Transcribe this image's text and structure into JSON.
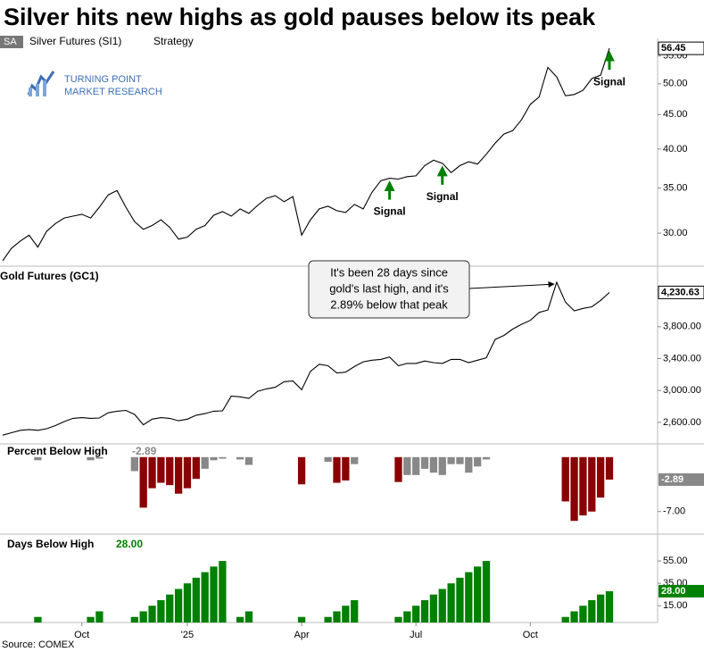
{
  "title": "Silver hits new highs as gold pauses below its peak",
  "source": "Source: COMEX",
  "logo": {
    "line1": "TURNING POINT",
    "line2": "MARKET RESEARCH"
  },
  "chart_data": [
    {
      "type": "line",
      "symbol": "SA",
      "name": "Silver Futures (SI1)",
      "study": "Strategy",
      "color": "#000000",
      "log_scale": true,
      "ylim": [
        26.8,
        58.4
      ],
      "yticks": [
        {
          "value": 30,
          "label": "30.00"
        },
        {
          "value": 35,
          "label": "35.00"
        },
        {
          "value": 40,
          "label": "40.00"
        },
        {
          "value": 45,
          "label": "45.00"
        },
        {
          "value": 50,
          "label": "50.00"
        },
        {
          "value": 55,
          "label": "55.00"
        }
      ],
      "values": [
        27.3,
        28.5,
        29.2,
        29.8,
        28.6,
        30.2,
        31.0,
        31.6,
        31.8,
        32.0,
        31.6,
        32.8,
        34.2,
        34.7,
        32.8,
        31.2,
        30.4,
        30.8,
        31.4,
        30.6,
        29.4,
        29.6,
        30.4,
        30.8,
        31.9,
        32.3,
        31.8,
        32.6,
        32.1,
        33.0,
        33.8,
        34.1,
        33.4,
        34.0,
        29.8,
        31.4,
        32.6,
        32.9,
        32.4,
        32.2,
        33.1,
        32.6,
        34.5,
        35.9,
        36.2,
        36.1,
        36.4,
        36.5,
        37.8,
        38.5,
        38.1,
        36.9,
        37.8,
        38.3,
        38.0,
        39.3,
        40.8,
        42.1,
        42.6,
        44.2,
        46.6,
        47.8,
        52.9,
        51.2,
        48.0,
        48.2,
        48.9,
        50.9,
        51.5,
        56.45
      ],
      "last_label": "56.45",
      "signal_color": "#008000",
      "signals": [
        {
          "index": 44,
          "label": "Signal"
        },
        {
          "index": 50,
          "label": "Signal"
        },
        {
          "index": 69,
          "label": "Signal"
        }
      ]
    },
    {
      "type": "line",
      "name": "Gold Futures (GC1)",
      "color": "#000000",
      "ylim": [
        2330,
        4560
      ],
      "yticks": [
        {
          "value": 2600,
          "label": "2,600.00"
        },
        {
          "value": 3000,
          "label": "3,000.00"
        },
        {
          "value": 3400,
          "label": "3,400.00"
        },
        {
          "value": 3800,
          "label": "3,800.00"
        }
      ],
      "values": [
        2440,
        2470,
        2500,
        2510,
        2500,
        2520,
        2560,
        2610,
        2650,
        2660,
        2650,
        2655,
        2720,
        2740,
        2750,
        2700,
        2570,
        2640,
        2660,
        2650,
        2620,
        2640,
        2690,
        2710,
        2740,
        2745,
        2930,
        2920,
        2900,
        2990,
        3020,
        3040,
        3110,
        3120,
        3010,
        3240,
        3330,
        3310,
        3220,
        3230,
        3300,
        3360,
        3380,
        3390,
        3420,
        3310,
        3340,
        3340,
        3370,
        3350,
        3340,
        3390,
        3390,
        3350,
        3380,
        3410,
        3640,
        3690,
        3770,
        3830,
        3880,
        3980,
        4010,
        4357,
        4110,
        4000,
        4030,
        4050,
        4130,
        4230.63
      ],
      "last_label": "4,230.63",
      "annotation": {
        "index": 63,
        "lines": [
          "It's been 28 days since",
          "gold's last high, and it's",
          "2.89% below that peak"
        ]
      }
    },
    {
      "type": "bar",
      "name": "Percent Below High",
      "badge_color": "#888888",
      "ylim": [
        -9.9,
        1.7
      ],
      "yticks": [
        {
          "value": -7,
          "label": "-7.00"
        }
      ],
      "values": [
        0,
        0,
        0,
        0,
        -0.4,
        0,
        0,
        0,
        0,
        0,
        -0.4,
        -0.2,
        0,
        0,
        0,
        -1.8,
        -6.5,
        -4.0,
        -3.3,
        -3.6,
        -4.7,
        -4.0,
        -2.8,
        -1.5,
        -0.4,
        -0.2,
        0,
        -0.3,
        -1.0,
        0,
        0,
        0,
        0,
        0,
        -3.5,
        0,
        0,
        -0.6,
        -3.3,
        -3.0,
        -0.9,
        0,
        0,
        0,
        0,
        -3.2,
        -2.3,
        -2.3,
        -1.5,
        -2.0,
        -2.3,
        -0.9,
        -0.9,
        -2.0,
        -1.2,
        -0.3,
        0,
        0,
        0,
        0,
        0,
        0,
        0,
        0,
        -5.7,
        -8.2,
        -7.5,
        -7.0,
        -5.2,
        -2.89
      ],
      "bar_colors": [
        "#888888",
        "#888888",
        "#888888",
        "#888888",
        "#888888",
        "#888888",
        "#888888",
        "#888888",
        "#888888",
        "#888888",
        "#888888",
        "#888888",
        "#888888",
        "#888888",
        "#888888",
        "#888888",
        "#8b0000",
        "#8b0000",
        "#8b0000",
        "#8b0000",
        "#8b0000",
        "#8b0000",
        "#8b0000",
        "#888888",
        "#888888",
        "#888888",
        "#888888",
        "#888888",
        "#888888",
        "#888888",
        "#888888",
        "#888888",
        "#888888",
        "#888888",
        "#8b0000",
        "#888888",
        "#888888",
        "#888888",
        "#8b0000",
        "#8b0000",
        "#888888",
        "#888888",
        "#888888",
        "#888888",
        "#888888",
        "#8b0000",
        "#888888",
        "#888888",
        "#888888",
        "#888888",
        "#888888",
        "#888888",
        "#888888",
        "#888888",
        "#888888",
        "#888888",
        "#888888",
        "#888888",
        "#888888",
        "#888888",
        "#888888",
        "#888888",
        "#888888",
        "#888888",
        "#8b0000",
        "#8b0000",
        "#8b0000",
        "#8b0000",
        "#8b0000",
        "#8b0000"
      ],
      "last_label": "-2.89"
    },
    {
      "type": "bar",
      "name": "Days Below High",
      "color": "#008000",
      "ylim": [
        0,
        79
      ],
      "yticks": [
        {
          "value": 15,
          "label": "15.00"
        },
        {
          "value": 35,
          "label": "35.00"
        },
        {
          "value": 55,
          "label": "55.00"
        }
      ],
      "values": [
        0,
        0,
        0,
        0,
        5,
        0,
        0,
        0,
        0,
        0,
        5,
        10,
        0,
        0,
        0,
        5,
        10,
        15,
        20,
        25,
        30,
        35,
        40,
        45,
        50,
        55,
        0,
        5,
        10,
        0,
        0,
        0,
        0,
        0,
        5,
        0,
        0,
        5,
        10,
        15,
        20,
        0,
        0,
        0,
        0,
        5,
        10,
        15,
        20,
        25,
        30,
        35,
        40,
        45,
        50,
        55,
        0,
        0,
        0,
        0,
        0,
        0,
        0,
        0,
        5,
        10,
        15,
        20,
        25,
        28
      ],
      "last_label": "28.00",
      "categories": [
        null,
        null,
        null,
        null,
        null,
        null,
        null,
        null,
        null,
        "Oct",
        null,
        null,
        null,
        null,
        null,
        null,
        null,
        null,
        null,
        null,
        null,
        "'25",
        null,
        null,
        null,
        null,
        null,
        null,
        null,
        null,
        null,
        null,
        null,
        null,
        "Apr",
        null,
        null,
        null,
        null,
        null,
        null,
        null,
        null,
        null,
        null,
        null,
        null,
        "Jul",
        null,
        null,
        null,
        null,
        null,
        null,
        null,
        null,
        null,
        null,
        null,
        null,
        "Oct",
        null,
        null,
        null,
        null,
        null,
        null,
        null,
        null,
        null
      ]
    }
  ]
}
